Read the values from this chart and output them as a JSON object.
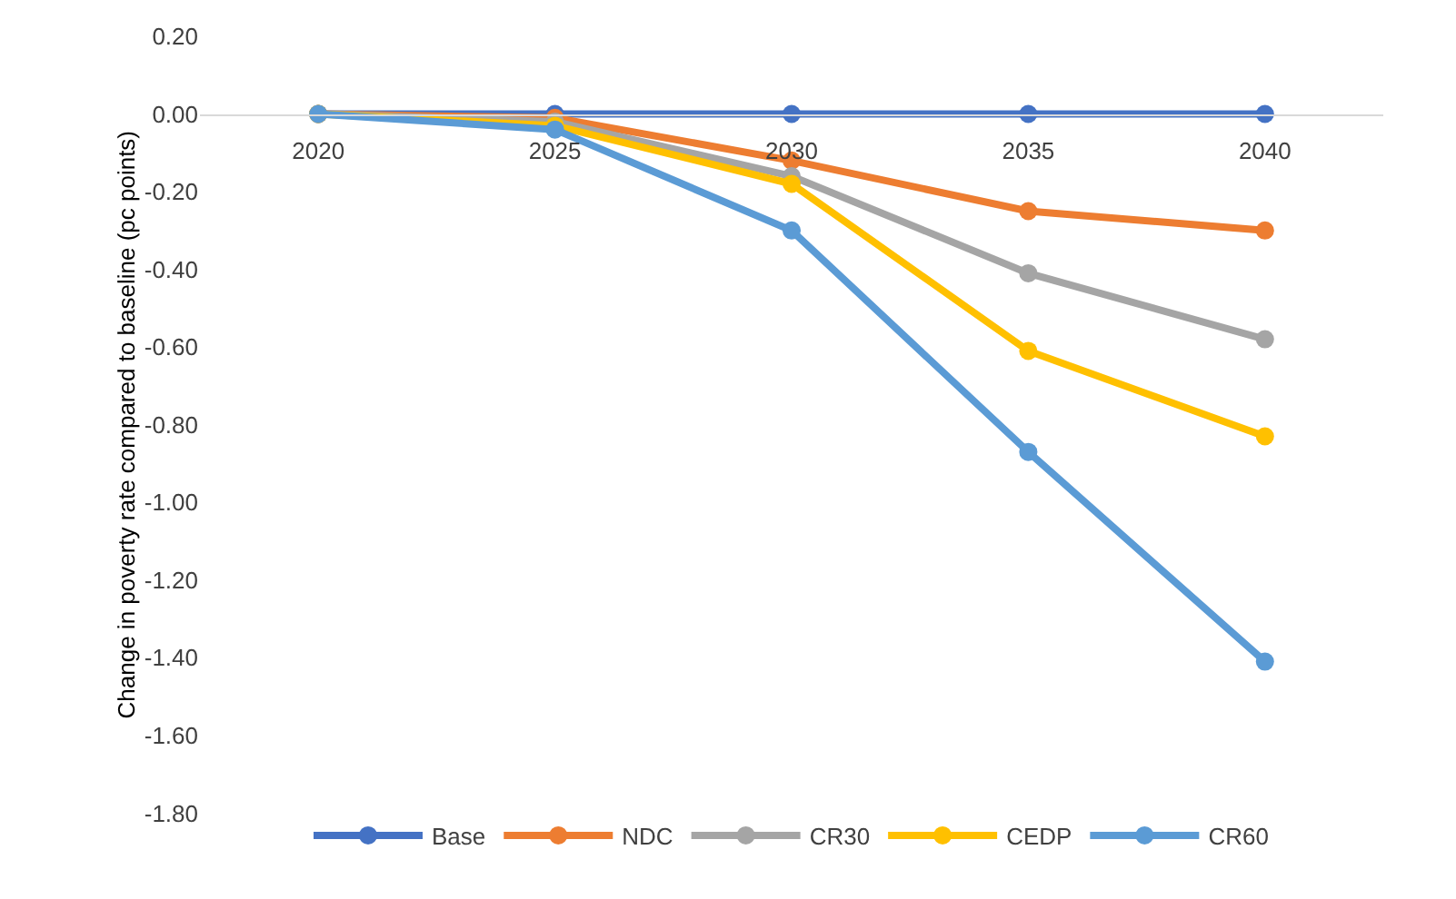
{
  "chart_data": {
    "type": "line",
    "ylabel": "Change in poverty rate compared to baseline (pc points)",
    "categories": [
      "2020",
      "2025",
      "2030",
      "2035",
      "2040"
    ],
    "series": [
      {
        "name": "Base",
        "color": "#4472c4",
        "values": [
          0,
          0,
          0,
          0,
          0
        ]
      },
      {
        "name": "NDC",
        "color": "#ed7d31",
        "values": [
          0,
          -0.01,
          -0.12,
          -0.25,
          -0.3
        ]
      },
      {
        "name": "CR30",
        "color": "#a5a5a5",
        "values": [
          0,
          -0.02,
          -0.16,
          -0.41,
          -0.58
        ]
      },
      {
        "name": "CEDP",
        "color": "#ffc000",
        "values": [
          0,
          -0.03,
          -0.18,
          -0.61,
          -0.83
        ]
      },
      {
        "name": "CR60",
        "color": "#5b9bd5",
        "values": [
          0,
          -0.04,
          -0.3,
          -0.87,
          -1.41
        ]
      }
    ],
    "ylim": [
      -1.8,
      0.2
    ],
    "yticks": [
      {
        "value": 0.2,
        "label": "0.20"
      },
      {
        "value": 0,
        "label": "0.00"
      },
      {
        "value": -0.2,
        "label": "-0.20"
      },
      {
        "value": -0.4,
        "label": "-0.40"
      },
      {
        "value": -0.6,
        "label": "-0.60"
      },
      {
        "value": -0.8,
        "label": "-0.80"
      },
      {
        "value": -1,
        "label": "-1.00"
      },
      {
        "value": -1.2,
        "label": "-1.20"
      },
      {
        "value": -1.4,
        "label": "-1.40"
      },
      {
        "value": -1.6,
        "label": "-1.60"
      },
      {
        "value": -1.8,
        "label": "-1.80"
      }
    ],
    "grid": false,
    "legend": "bottom",
    "marker": "circle",
    "line_style": "solid"
  }
}
